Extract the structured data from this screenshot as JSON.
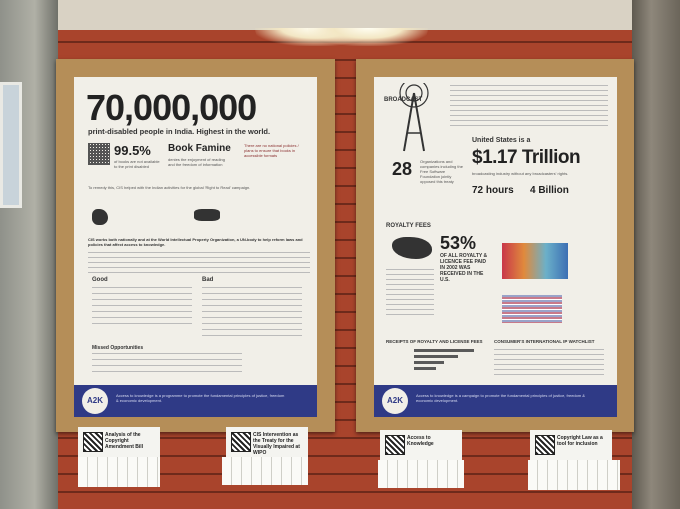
{
  "left_poster": {
    "headline_number": "70,000,000",
    "headline_sub": "print-disabled people in India. Highest in the world.",
    "stat_percent": "99.5%",
    "stat_percent_text": "of books are not available to the print disabled",
    "book_famine_title": "Book Famine",
    "book_famine_text": "denies the enjoyment of reading and the freedom of information",
    "policy_text": "There are no national policies / plans to ensure that books in accessible formats",
    "right_to_read": "To remedy this, CIS helped with the Indian activities for the global 'Right to Read' campaign.",
    "wipo_text": "CIS works both nationally and at the World Intellectual Property Organization, a UN-body to help reform laws and policies that affect access to knowledge.",
    "good_label": "Good",
    "bad_label": "Bad",
    "missed_label": "Missed Opportunities",
    "footer_logo": "A2K",
    "footer_text": "Access to knowledge is a programme to promote the fundamental principles of justice, freedom & economic development."
  },
  "right_poster": {
    "broadcast_label": "BROADCAST",
    "orgs_number": "28",
    "orgs_text": "Organizations and companies including the Free Software Foundation jointly opposed this treaty",
    "us_text": "United States is a",
    "trillion_number": "$1.17 Trillion",
    "trillion_sub": "broadcasting industry without any broadcasters' rights.",
    "hours_number": "72 hours",
    "billion_number": "4 Billion",
    "royalty_label": "ROYALTY FEES",
    "royalty_percent": "53%",
    "royalty_text": "OF ALL ROYALTY & LICENCE FEE PAID IN 2002 WAS RECEIVED IN THE U.S.",
    "receipts_label": "RECEIPTS OF ROYALTY AND LICENSE FEES",
    "consumer_label": "CONSUMER'S INTERNATIONAL IP WATCHLIST",
    "footer_logo": "A2K",
    "footer_text": "Access to knowledge is a campaign to promote the fundamental principles of justice, freedom & economic development."
  },
  "cards": [
    {
      "label": "Analysis of the Copyright Amendment Bill"
    },
    {
      "label": "CIS Intervention as the Treaty for the Visually Impaired at WIPO"
    },
    {
      "label": "Access to Knowledge"
    },
    {
      "label": "Copyright Law as a tool for inclusion"
    }
  ]
}
